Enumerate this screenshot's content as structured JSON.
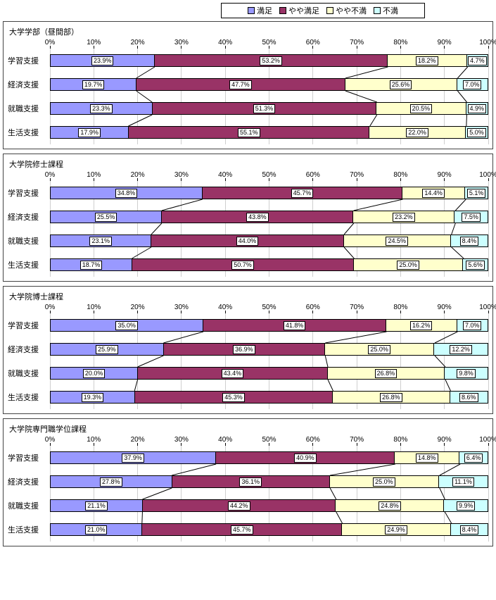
{
  "legend": {
    "items": [
      {
        "label": "満足",
        "color": "#9999ff"
      },
      {
        "label": "やや満足",
        "color": "#993366"
      },
      {
        "label": "やや不満",
        "color": "#ffffcc"
      },
      {
        "label": "不満",
        "color": "#ccffff"
      }
    ]
  },
  "axis": {
    "min": 0,
    "max": 100,
    "step": 10,
    "suffix": "%"
  },
  "chart_style": {
    "bar_border": "#000000",
    "grid_color": "#cfcfcf",
    "label_box_border": "#000000",
    "label_box_bg": "#ffffff",
    "label_fontsize": 9,
    "connector_color": "#000000",
    "connector_width": 1
  },
  "panels": [
    {
      "title": "大学学部（昼間部）",
      "rows": [
        {
          "name": "学習支援",
          "values": [
            23.9,
            53.2,
            18.2,
            4.7
          ]
        },
        {
          "name": "経済支援",
          "values": [
            19.7,
            47.7,
            25.6,
            7.0
          ]
        },
        {
          "name": "就職支援",
          "values": [
            23.3,
            51.3,
            20.5,
            4.9
          ]
        },
        {
          "name": "生活支援",
          "values": [
            17.9,
            55.1,
            22.0,
            5.0
          ]
        }
      ]
    },
    {
      "title": "大学院修士課程",
      "rows": [
        {
          "name": "学習支援",
          "values": [
            34.8,
            45.7,
            14.4,
            5.1
          ]
        },
        {
          "name": "経済支援",
          "values": [
            25.5,
            43.8,
            23.2,
            7.5
          ]
        },
        {
          "name": "就職支援",
          "values": [
            23.1,
            44.0,
            24.5,
            8.4
          ]
        },
        {
          "name": "生活支援",
          "values": [
            18.7,
            50.7,
            25.0,
            5.6
          ]
        }
      ]
    },
    {
      "title": "大学院博士課程",
      "rows": [
        {
          "name": "学習支援",
          "values": [
            35.0,
            41.8,
            16.2,
            7.0
          ]
        },
        {
          "name": "経済支援",
          "values": [
            25.9,
            36.9,
            25.0,
            12.2
          ]
        },
        {
          "name": "就職支援",
          "values": [
            20.0,
            43.4,
            26.8,
            9.8
          ]
        },
        {
          "name": "生活支援",
          "values": [
            19.3,
            45.3,
            26.8,
            8.6
          ]
        }
      ]
    },
    {
      "title": "大学院専門職学位課程",
      "rows": [
        {
          "name": "学習支援",
          "values": [
            37.9,
            40.9,
            14.8,
            6.4
          ]
        },
        {
          "name": "経済支援",
          "values": [
            27.8,
            36.1,
            25.0,
            11.1
          ]
        },
        {
          "name": "就職支援",
          "values": [
            21.1,
            44.2,
            24.8,
            9.9
          ]
        },
        {
          "name": "生活支援",
          "values": [
            21.0,
            45.7,
            24.9,
            8.4
          ]
        }
      ]
    }
  ]
}
